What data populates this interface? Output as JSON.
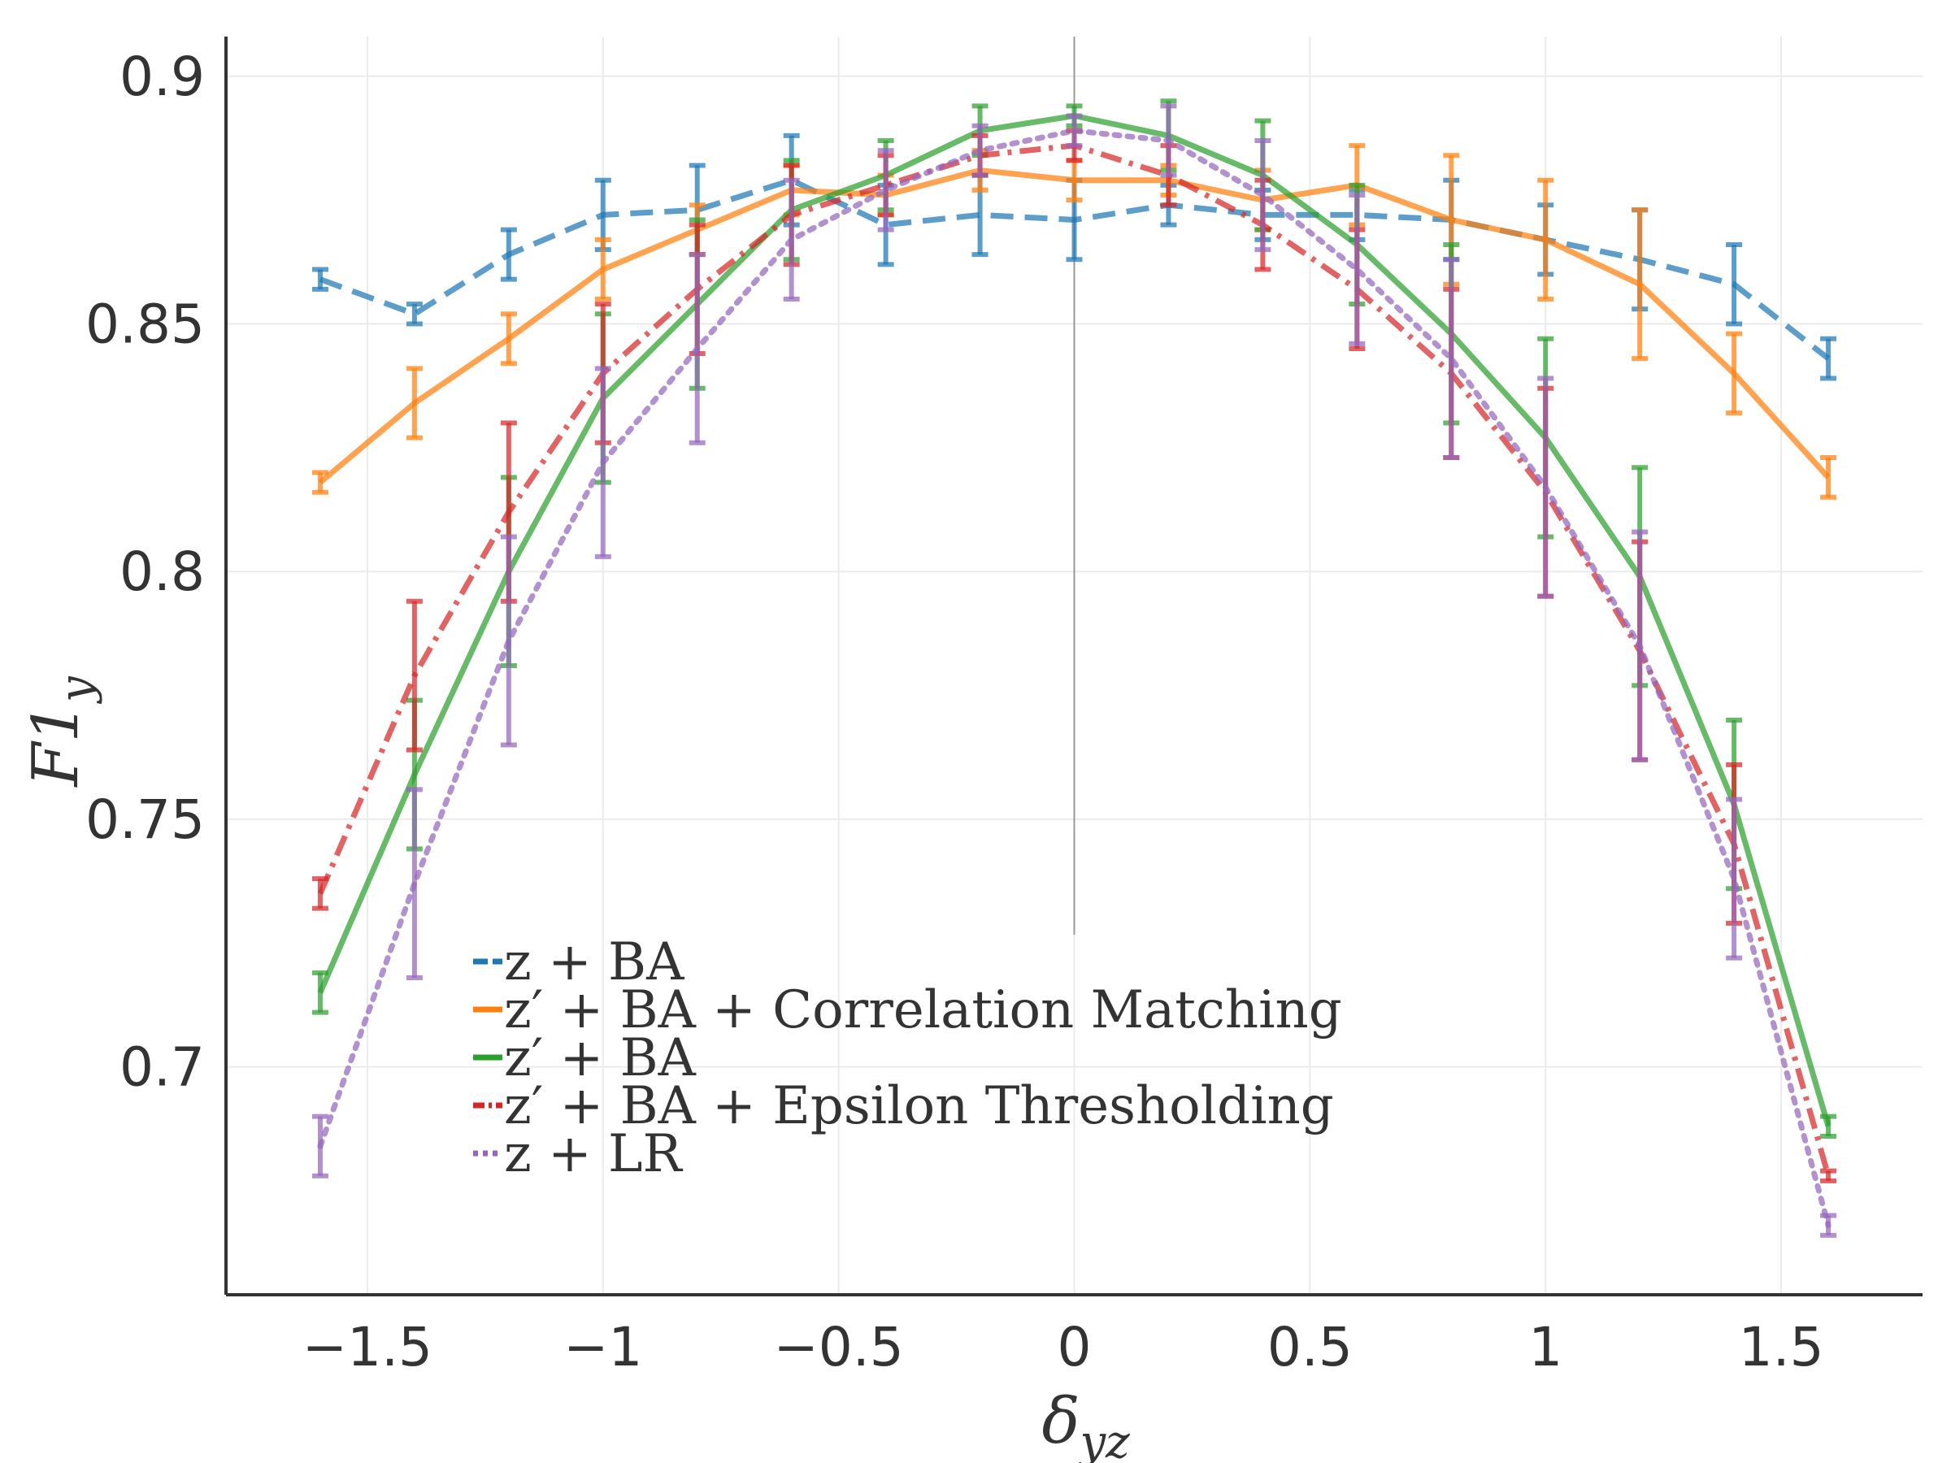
{
  "chart_data": {
    "type": "line",
    "xlabel": "δ_yz",
    "ylabel": "F1_y",
    "xlim": [
      -1.8,
      1.8
    ],
    "ylim": [
      0.654,
      0.908
    ],
    "x_ticks": [
      -1.5,
      -1,
      -0.5,
      0,
      0.5,
      1,
      1.5
    ],
    "x_tick_labels": [
      "−1.5",
      "−1",
      "−0.5",
      "0",
      "0.5",
      "1",
      "1.5"
    ],
    "y_ticks": [
      0.7,
      0.75,
      0.8,
      0.85,
      0.9
    ],
    "y_tick_labels": [
      "0.7",
      "0.75",
      "0.8",
      "0.85",
      "0.9"
    ],
    "grid": true,
    "zero_line": true,
    "legend_position": "bottom-left",
    "x": [
      -1.6,
      -1.4,
      -1.2,
      -1.0,
      -0.8,
      -0.6,
      -0.4,
      -0.2,
      0.0,
      0.2,
      0.4,
      0.6,
      0.8,
      1.0,
      1.2,
      1.4,
      1.6
    ],
    "series": [
      {
        "name": "z + BA",
        "color": "#1f77b4",
        "dash": "dashed",
        "y": [
          0.859,
          0.852,
          0.864,
          0.872,
          0.873,
          0.879,
          0.87,
          0.872,
          0.871,
          0.874,
          0.872,
          0.872,
          0.871,
          0.867,
          0.863,
          0.858,
          0.843
        ],
        "err": [
          0.002,
          0.002,
          0.005,
          0.007,
          0.009,
          0.009,
          0.008,
          0.008,
          0.008,
          0.004,
          0.005,
          0.005,
          0.008,
          0.007,
          0.01,
          0.008,
          0.004
        ]
      },
      {
        "name": "z′ + BA + Correlation Matching",
        "color": "#ff7f0e",
        "dash": "solid",
        "y": [
          0.818,
          0.834,
          0.847,
          0.861,
          0.869,
          0.877,
          0.876,
          0.881,
          0.879,
          0.879,
          0.875,
          0.878,
          0.871,
          0.867,
          0.858,
          0.84,
          0.819
        ],
        "err": [
          0.002,
          0.007,
          0.005,
          0.006,
          0.005,
          0.005,
          0.004,
          0.004,
          0.004,
          0.003,
          0.006,
          0.008,
          0.013,
          0.012,
          0.015,
          0.008,
          0.004
        ]
      },
      {
        "name": "z′ + BA",
        "color": "#2ca02c",
        "dash": "solid",
        "y": [
          0.715,
          0.759,
          0.8,
          0.835,
          0.854,
          0.873,
          0.88,
          0.889,
          0.892,
          0.888,
          0.88,
          0.866,
          0.848,
          0.827,
          0.799,
          0.753,
          0.688
        ],
        "err": [
          0.004,
          0.015,
          0.019,
          0.017,
          0.017,
          0.01,
          0.007,
          0.005,
          0.002,
          0.007,
          0.011,
          0.012,
          0.018,
          0.02,
          0.022,
          0.017,
          0.002
        ]
      },
      {
        "name": "z′ + BA + Epsilon Thresholding",
        "color": "#d62728",
        "dash": "dashdot",
        "y": [
          0.735,
          0.779,
          0.812,
          0.84,
          0.857,
          0.872,
          0.878,
          0.884,
          0.886,
          0.88,
          0.87,
          0.857,
          0.84,
          0.816,
          0.784,
          0.745,
          0.678
        ],
        "err": [
          0.003,
          0.015,
          0.018,
          0.014,
          0.013,
          0.01,
          0.006,
          0.004,
          0.003,
          0.006,
          0.009,
          0.012,
          0.017,
          0.021,
          0.022,
          0.016,
          0.001
        ]
      },
      {
        "name": "z + LR",
        "color": "#9467bd",
        "dash": "dotted",
        "y": [
          0.684,
          0.737,
          0.786,
          0.822,
          0.845,
          0.867,
          0.877,
          0.885,
          0.889,
          0.887,
          0.876,
          0.861,
          0.843,
          0.817,
          0.785,
          0.738,
          0.668
        ],
        "err": [
          0.006,
          0.019,
          0.021,
          0.019,
          0.019,
          0.012,
          0.008,
          0.005,
          0.003,
          0.007,
          0.011,
          0.015,
          0.02,
          0.022,
          0.023,
          0.016,
          0.002
        ]
      }
    ]
  }
}
